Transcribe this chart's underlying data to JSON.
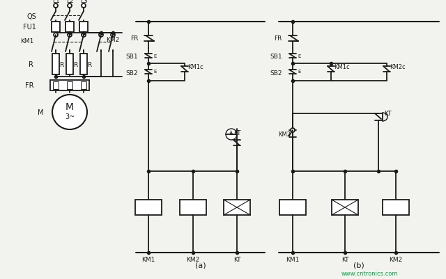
{
  "bg_color": "#f2f2ee",
  "line_color": "#1a1a1a",
  "label_a": "(a)",
  "label_b": "(b)",
  "watermark": "www.cntronics.com",
  "watermark_color": "#00aa44",
  "lw_main": 1.3,
  "lw_thin": 0.8
}
